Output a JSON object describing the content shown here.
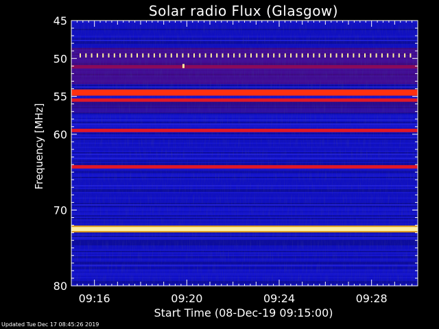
{
  "chart_data": {
    "type": "heatmap",
    "title": "Solar radio Flux (Glasgow)",
    "xlabel": "Start Time (08-Dec-19 09:15:00)",
    "ylabel": "Frequency [MHz]",
    "x_tick_labels": [
      "09:16",
      "09:20",
      "09:24",
      "09:28"
    ],
    "x_tick_minutes": [
      16,
      20,
      24,
      28
    ],
    "xlim_minutes": [
      15.0,
      30.0
    ],
    "y_tick_labels": [
      "45",
      "50",
      "55",
      "60",
      "70",
      "80"
    ],
    "y_tick_values": [
      45,
      50,
      55,
      60,
      70,
      80
    ],
    "ylim": [
      45,
      80
    ],
    "bands": [
      {
        "freq": 49.6,
        "level": 0.95,
        "kind": "dotted"
      },
      {
        "freq": 51.1,
        "level": 0.55
      },
      {
        "freq": 54.5,
        "level": 0.9
      },
      {
        "freq": 55.5,
        "level": 0.65
      },
      {
        "freq": 59.5,
        "level": 0.7
      },
      {
        "freq": 64.3,
        "level": 0.75
      },
      {
        "freq": 72.5,
        "level": 1.0
      }
    ],
    "colors": {
      "low": "#1010c0",
      "mid": "#8a0a5a",
      "high": "#ff3010",
      "peak": "#fff0a0",
      "axis": "#ffffff"
    }
  },
  "footer": "Updated Tue Dec 17 08:45:26 2019"
}
